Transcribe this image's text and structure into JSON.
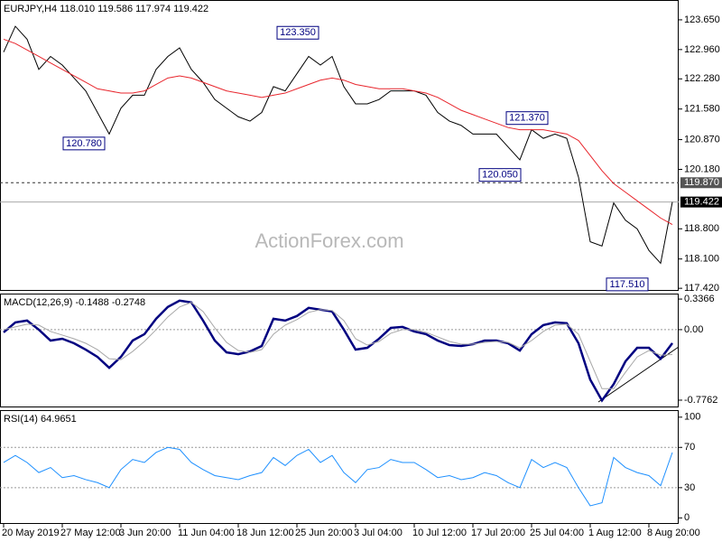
{
  "chart_data": [
    {
      "type": "line",
      "title": "EURJPY,H4 118.010 119.586 117.974 119.422",
      "watermark": "ActionForex.com",
      "ylim": [
        117.36,
        124.11
      ],
      "yticks": [
        {
          "value": 123.65,
          "label": "123.650"
        },
        {
          "value": 122.96,
          "label": "122.960"
        },
        {
          "value": 122.28,
          "label": "122.280"
        },
        {
          "value": 121.58,
          "label": "121.580"
        },
        {
          "value": 120.87,
          "label": "120.870"
        },
        {
          "value": 120.18,
          "label": "120.180"
        },
        {
          "value": 118.8,
          "label": "118.800"
        },
        {
          "value": 118.1,
          "label": "118.100"
        },
        {
          "value": 117.42,
          "label": "117.420"
        }
      ],
      "series": [
        {
          "color": "#000000",
          "values": [
            122.9,
            123.5,
            123.2,
            122.5,
            122.8,
            122.6,
            122.3,
            122.0,
            121.5,
            121.0,
            121.6,
            121.9,
            121.9,
            122.5,
            122.8,
            123.0,
            122.5,
            122.2,
            121.8,
            121.6,
            121.4,
            121.3,
            121.5,
            122.1,
            122.0,
            122.4,
            122.8,
            122.6,
            122.8,
            122.1,
            121.7,
            121.7,
            121.8,
            122.0,
            122.0,
            122.0,
            121.9,
            121.5,
            121.3,
            121.2,
            121.0,
            121.0,
            121.0,
            120.7,
            120.4,
            121.1,
            120.9,
            121.0,
            120.9,
            120.0,
            118.5,
            118.4,
            119.4,
            119.0,
            118.8,
            118.3,
            118.0,
            119.422
          ]
        },
        {
          "color": "#e8262d",
          "values": [
            123.2,
            123.1,
            122.95,
            122.8,
            122.65,
            122.5,
            122.35,
            122.2,
            122.05,
            122.0,
            121.95,
            121.95,
            122.0,
            122.15,
            122.3,
            122.35,
            122.3,
            122.2,
            122.1,
            122.0,
            121.95,
            121.9,
            121.85,
            121.9,
            121.95,
            122.05,
            122.15,
            122.25,
            122.3,
            122.25,
            122.15,
            122.1,
            122.05,
            122.05,
            122.05,
            122.0,
            121.95,
            121.85,
            121.7,
            121.55,
            121.45,
            121.35,
            121.25,
            121.15,
            121.1,
            121.1,
            121.1,
            121.05,
            121.0,
            120.85,
            120.5,
            120.15,
            119.85,
            119.65,
            119.45,
            119.25,
            119.05,
            118.9
          ]
        }
      ],
      "annotations": [
        {
          "value": 123.35,
          "label": "123.350"
        },
        {
          "value": 120.78,
          "label": "120.780"
        },
        {
          "value": 121.37,
          "label": "121.370"
        },
        {
          "value": 120.05,
          "label": "120.050"
        },
        {
          "value": 117.51,
          "label": "117.510"
        }
      ],
      "hline": {
        "value": 119.87,
        "label": "119.870"
      },
      "last_price": {
        "value": 119.422,
        "label": "119.422"
      }
    },
    {
      "type": "line",
      "title": "MACD(12,26,9) -0.1488 -0.2748",
      "ylim": [
        -0.856,
        0.397
      ],
      "yticks": [
        0.3366,
        {
          "value": 0,
          "label": "0.00"
        },
        -0.7762
      ],
      "levels": [
        0
      ],
      "series": [
        {
          "color": "#000080",
          "values": [
            -0.03,
            0.08,
            0.1,
            0.0,
            -0.12,
            -0.1,
            -0.15,
            -0.22,
            -0.3,
            -0.42,
            -0.3,
            -0.12,
            -0.05,
            0.12,
            0.25,
            0.32,
            0.3,
            0.1,
            -0.12,
            -0.25,
            -0.27,
            -0.24,
            -0.18,
            0.12,
            0.1,
            0.15,
            0.24,
            0.22,
            0.2,
            0.0,
            -0.22,
            -0.2,
            -0.1,
            0.02,
            0.03,
            -0.02,
            -0.05,
            -0.12,
            -0.17,
            -0.18,
            -0.16,
            -0.12,
            -0.12,
            -0.15,
            -0.23,
            -0.05,
            0.05,
            0.08,
            0.07,
            -0.15,
            -0.55,
            -0.78,
            -0.6,
            -0.35,
            -0.2,
            -0.2,
            -0.32,
            -0.1488
          ]
        },
        {
          "color": "#a8a8a8",
          "values": [
            0.0,
            0.03,
            0.06,
            0.05,
            -0.02,
            -0.06,
            -0.1,
            -0.15,
            -0.22,
            -0.32,
            -0.33,
            -0.24,
            -0.13,
            0.0,
            0.14,
            0.25,
            0.3,
            0.2,
            0.02,
            -0.14,
            -0.23,
            -0.25,
            -0.22,
            -0.05,
            0.05,
            0.11,
            0.19,
            0.22,
            0.21,
            0.1,
            -0.1,
            -0.17,
            -0.13,
            -0.04,
            0.0,
            0.0,
            -0.03,
            -0.08,
            -0.13,
            -0.16,
            -0.16,
            -0.14,
            -0.13,
            -0.14,
            -0.2,
            -0.12,
            -0.02,
            0.05,
            0.06,
            -0.05,
            -0.35,
            -0.65,
            -0.65,
            -0.47,
            -0.3,
            -0.23,
            -0.28,
            -0.2748
          ]
        }
      ]
    },
    {
      "type": "line",
      "title": "RSI(14) 64.9651",
      "ylim": [
        -6,
        107
      ],
      "yticks": [
        100,
        70,
        30,
        0
      ],
      "levels": [
        70,
        30
      ],
      "categories": [
        "20 May 2019",
        null,
        null,
        null,
        null,
        "27 May 12:00",
        null,
        null,
        null,
        null,
        "3 Jun 20:00",
        null,
        null,
        null,
        null,
        "11 Jun 04:00",
        null,
        null,
        null,
        null,
        "18 Jun 12:00",
        null,
        null,
        null,
        null,
        "25 Jun 20:00",
        null,
        null,
        null,
        null,
        "3 Jul 04:00",
        null,
        null,
        null,
        null,
        "10 Jul 12:00",
        null,
        null,
        null,
        null,
        "17 Jul 20:00",
        null,
        null,
        null,
        null,
        "25 Jul 04:00",
        null,
        null,
        null,
        null,
        "1 Aug 12:00",
        null,
        null,
        null,
        null,
        "8 Aug 20:00",
        null,
        null
      ],
      "series": [
        {
          "color": "#1e90ff",
          "values": [
            55,
            62,
            55,
            45,
            50,
            40,
            42,
            38,
            35,
            30,
            48,
            58,
            55,
            65,
            70,
            68,
            55,
            48,
            42,
            40,
            38,
            42,
            45,
            60,
            52,
            62,
            68,
            55,
            62,
            45,
            35,
            48,
            50,
            58,
            55,
            55,
            48,
            40,
            42,
            38,
            40,
            45,
            42,
            35,
            30,
            58,
            50,
            55,
            50,
            30,
            12,
            15,
            60,
            50,
            45,
            42,
            32,
            64.9651
          ]
        }
      ]
    }
  ]
}
